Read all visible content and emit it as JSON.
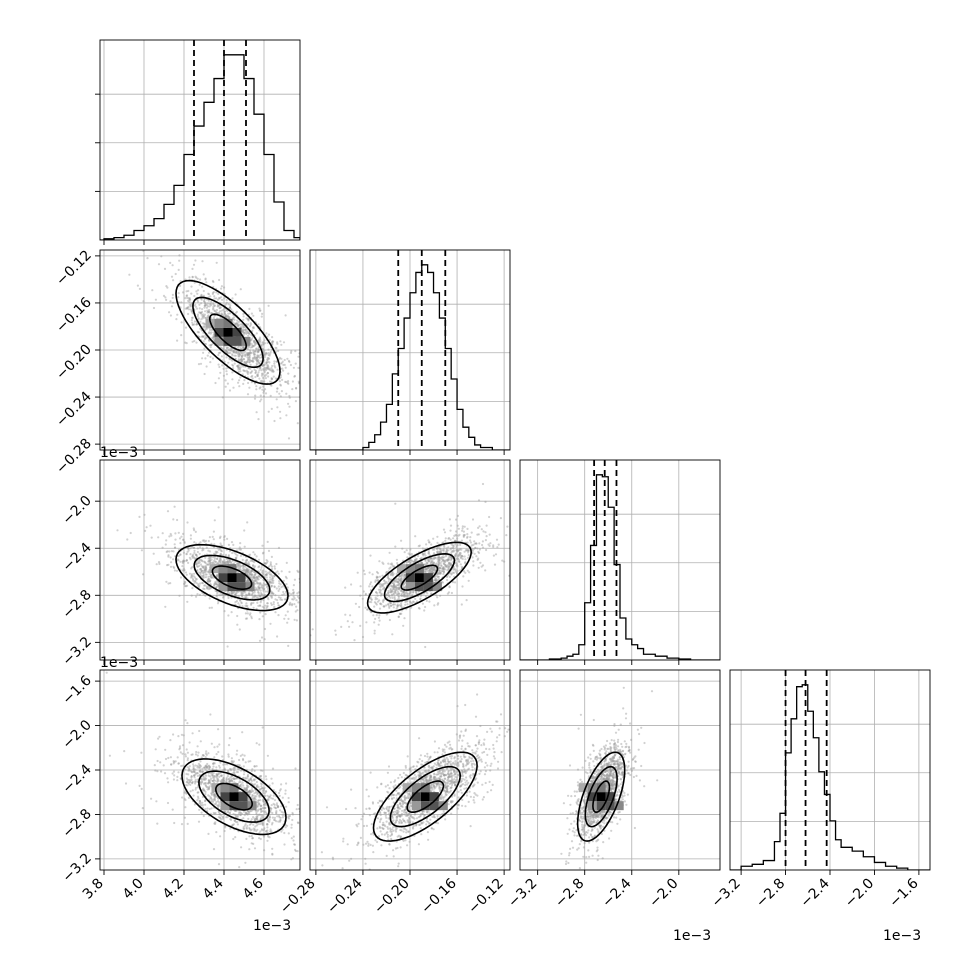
{
  "figure": {
    "exponent_label": "1e−3"
  },
  "colors": {
    "line": "#000000",
    "grid": "#b0b0b0",
    "scatter": "#9a9a9a"
  },
  "chart_data": {
    "type": "corner",
    "grid": true,
    "parameters": [
      {
        "id": "p0",
        "range": [
          3.78,
          4.78
        ],
        "ticks": [
          3.8,
          4.0,
          4.2,
          4.4,
          4.6
        ],
        "tick_labels": [
          "3.8",
          "4.0",
          "4.2",
          "4.4",
          "4.6"
        ],
        "exponent_label": "1e−3",
        "quantiles": [
          4.25,
          4.4,
          4.51
        ]
      },
      {
        "id": "p1",
        "range": [
          -0.285,
          -0.115
        ],
        "ticks": [
          -0.28,
          -0.24,
          -0.2,
          -0.16,
          -0.12
        ],
        "tick_labels": [
          "−0.28",
          "−0.24",
          "−0.20",
          "−0.16",
          "−0.12"
        ],
        "exponent_label": "1e−3",
        "quantiles": [
          -0.21,
          -0.19,
          -0.17
        ]
      },
      {
        "id": "p2",
        "range": [
          -3.35,
          -1.65
        ],
        "ticks": [
          -3.2,
          -2.8,
          -2.4,
          -2.0
        ],
        "tick_labels": [
          "−3.2",
          "−2.8",
          "−2.4",
          "−2.0"
        ],
        "exponent_label": "1e−3",
        "quantiles": [
          -2.72,
          -2.63,
          -2.53
        ]
      },
      {
        "id": "p3",
        "range": [
          -3.3,
          -1.5
        ],
        "ticks": [
          -3.2,
          -2.8,
          -2.4,
          -2.0,
          -1.6
        ],
        "tick_labels": [
          "−3.2",
          "−2.8",
          "−2.4",
          "−2.0",
          "−1.6"
        ],
        "exponent_label": "1e−3",
        "quantiles": [
          -2.8,
          -2.62,
          -2.43
        ]
      }
    ],
    "histograms": [
      {
        "param": 0,
        "bins": [
          3.78,
          3.8,
          3.85,
          3.9,
          3.95,
          4.0,
          4.05,
          4.1,
          4.15,
          4.2,
          4.25,
          4.3,
          4.35,
          4.4,
          4.45,
          4.5,
          4.55,
          4.6,
          4.65,
          4.7,
          4.75,
          4.78
        ],
        "counts": [
          0,
          0.5,
          1,
          2,
          4,
          6,
          9,
          15,
          23,
          36,
          48,
          58,
          68,
          78,
          78,
          68,
          53,
          36,
          16,
          4,
          1
        ]
      },
      {
        "param": 1,
        "bins": [
          -0.285,
          -0.28,
          -0.275,
          -0.27,
          -0.265,
          -0.26,
          -0.255,
          -0.25,
          -0.245,
          -0.24,
          -0.235,
          -0.23,
          -0.225,
          -0.22,
          -0.215,
          -0.21,
          -0.205,
          -0.2,
          -0.195,
          -0.19,
          -0.185,
          -0.18,
          -0.175,
          -0.17,
          -0.165,
          -0.16,
          -0.155,
          -0.15,
          -0.145,
          -0.14,
          -0.135,
          -0.13,
          -0.125,
          -0.12,
          -0.115
        ],
        "counts": [
          0,
          0,
          0,
          0,
          0,
          0,
          0,
          0,
          0,
          1,
          3,
          6,
          11,
          18,
          30,
          40,
          52,
          62,
          70,
          73,
          70,
          62,
          52,
          40,
          28,
          16,
          9,
          5,
          2,
          1,
          1,
          0,
          0,
          0
        ]
      },
      {
        "param": 2,
        "bins": [
          -3.35,
          -3.3,
          -3.2,
          -3.1,
          -3.0,
          -2.95,
          -2.9,
          -2.85,
          -2.8,
          -2.75,
          -2.7,
          -2.65,
          -2.6,
          -2.55,
          -2.5,
          -2.45,
          -2.4,
          -2.35,
          -2.3,
          -2.2,
          -2.1,
          -2.0,
          -1.9,
          -1.8,
          -1.65
        ],
        "counts": [
          0,
          0,
          0,
          0.5,
          1,
          2,
          3,
          8,
          30,
          60,
          97,
          96,
          80,
          50,
          22,
          11,
          8,
          6,
          3,
          2,
          1,
          0.5,
          0,
          0
        ]
      },
      {
        "param": 3,
        "bins": [
          -3.3,
          -3.2,
          -3.1,
          -3.0,
          -2.9,
          -2.85,
          -2.8,
          -2.75,
          -2.7,
          -2.65,
          -2.6,
          -2.55,
          -2.5,
          -2.45,
          -2.4,
          -2.35,
          -2.3,
          -2.2,
          -2.1,
          -2.0,
          -1.9,
          -1.8,
          -1.7,
          -1.6,
          -1.5
        ],
        "counts": [
          0,
          2,
          3,
          5,
          15,
          30,
          62,
          80,
          97,
          98,
          84,
          70,
          52,
          40,
          26,
          16,
          12,
          10,
          7,
          4,
          2,
          1,
          0,
          0
        ]
      }
    ],
    "pairs": [
      {
        "x": 0,
        "y": 1,
        "center": [
          4.45,
          -0.19
        ],
        "spread": [
          0.13,
          0.022
        ],
        "correlation": -0.75,
        "peak": [
          4.42,
          -0.185
        ]
      },
      {
        "x": 0,
        "y": 2,
        "center": [
          4.45,
          -2.64
        ],
        "spread": [
          0.14,
          0.14
        ],
        "correlation": -0.55,
        "peak": [
          4.44,
          -2.65
        ]
      },
      {
        "x": 1,
        "y": 2,
        "center": [
          -0.19,
          -2.62
        ],
        "spread": [
          0.022,
          0.15
        ],
        "correlation": 0.72,
        "peak": [
          -0.192,
          -2.65
        ]
      },
      {
        "x": 0,
        "y": 3,
        "center": [
          4.45,
          -2.62
        ],
        "spread": [
          0.13,
          0.17
        ],
        "correlation": -0.55,
        "peak": [
          4.45,
          -2.64
        ]
      },
      {
        "x": 1,
        "y": 3,
        "center": [
          -0.185,
          -2.6
        ],
        "spread": [
          0.022,
          0.2
        ],
        "correlation": 0.7,
        "peak": [
          -0.187,
          -2.64
        ]
      },
      {
        "x": 2,
        "y": 3,
        "center": [
          -2.65,
          -2.6
        ],
        "spread": [
          0.1,
          0.2
        ],
        "correlation": 0.6,
        "peak": [
          -2.66,
          -2.64
        ]
      }
    ]
  }
}
